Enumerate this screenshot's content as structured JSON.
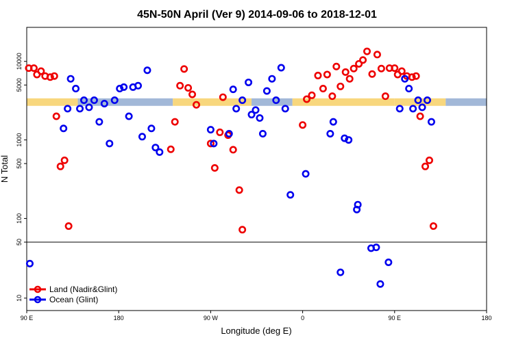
{
  "chart_data": {
    "type": "scatter",
    "title": "45N-50N April (Ver 9)   2014-09-06 to 2018-12-01",
    "xlabel": "Longitude (deg E)",
    "ylabel": "N Total",
    "xlim": [
      90,
      450
    ],
    "x_ticks": [
      {
        "value": 90,
        "label": "90 E"
      },
      {
        "value": 180,
        "label": "180"
      },
      {
        "value": 270,
        "label": "90 W"
      },
      {
        "value": 360,
        "label": "0"
      },
      {
        "value": 450,
        "label": "90 E"
      },
      {
        "value": 540,
        "label": "180"
      }
    ],
    "y_scale": "log",
    "lower_panel": {
      "ylim": [
        7,
        50
      ],
      "ticks": [
        {
          "value": 10,
          "label": "10"
        }
      ]
    },
    "upper_panel": {
      "ylim": [
        50,
        25000
      ],
      "ticks": [
        {
          "value": 50,
          "label": "50"
        },
        {
          "value": 100,
          "label": "100"
        },
        {
          "value": 500,
          "label": "500"
        },
        {
          "value": 1000,
          "label": "1000"
        },
        {
          "value": 5000,
          "label": "5000"
        },
        {
          "value": 10000,
          "label": "10000"
        }
      ]
    },
    "land_strip": {
      "y": 3000,
      "land_color": "#f8d77d",
      "ocean_color": "#a2b8d8",
      "segments": [
        {
          "from": 90,
          "to": 140,
          "kind": "land"
        },
        {
          "from": 140,
          "to": 233,
          "kind": "ocean"
        },
        {
          "from": 233,
          "to": 310,
          "kind": "land"
        },
        {
          "from": 310,
          "to": 350,
          "kind": "ocean"
        },
        {
          "from": 350,
          "to": 450,
          "kind": "land"
        },
        {
          "from": 450,
          "to": 500,
          "kind": "land"
        },
        {
          "from": 500,
          "to": 540,
          "kind": "ocean"
        }
      ]
    },
    "grid": false,
    "legend_position": "bottom-left",
    "series": [
      {
        "name": "Land (Nadir&Glint)",
        "color": "#ee0000",
        "points": [
          [
            92,
            8200
          ],
          [
            97,
            8200
          ],
          [
            100,
            6800
          ],
          [
            104,
            7500
          ],
          [
            108,
            6500
          ],
          [
            113,
            6300
          ],
          [
            117,
            6500
          ],
          [
            119,
            2000
          ],
          [
            123,
            460
          ],
          [
            127,
            550
          ],
          [
            131,
            80
          ],
          [
            231,
            760
          ],
          [
            235,
            1700
          ],
          [
            240,
            4900
          ],
          [
            244,
            8000
          ],
          [
            248,
            4600
          ],
          [
            252,
            3800
          ],
          [
            256,
            2800
          ],
          [
            270,
            900
          ],
          [
            274,
            440
          ],
          [
            279,
            1250
          ],
          [
            282,
            3500
          ],
          [
            287,
            1150
          ],
          [
            292,
            750
          ],
          [
            298,
            230
          ],
          [
            301,
            72
          ],
          [
            360,
            1550
          ],
          [
            364,
            3300
          ],
          [
            369,
            3700
          ],
          [
            375,
            6600
          ],
          [
            380,
            4500
          ],
          [
            384,
            6800
          ],
          [
            389,
            3600
          ],
          [
            393,
            8600
          ],
          [
            397,
            4800
          ],
          [
            402,
            7300
          ],
          [
            406,
            6000
          ],
          [
            410,
            8100
          ],
          [
            415,
            9300
          ],
          [
            419,
            10400
          ],
          [
            423,
            13400
          ],
          [
            428,
            6900
          ],
          [
            433,
            12200
          ],
          [
            437,
            8100
          ],
          [
            441,
            3600
          ],
          [
            445,
            8200
          ],
          [
            450,
            8200
          ],
          [
            453,
            6800
          ],
          [
            457,
            7500
          ],
          [
            462,
            6500
          ],
          [
            467,
            6300
          ],
          [
            471,
            6500
          ],
          [
            475,
            2000
          ],
          [
            480,
            460
          ],
          [
            484,
            550
          ],
          [
            488,
            80
          ]
        ]
      },
      {
        "name": "Ocean (Glint)",
        "color": "#0000ee",
        "points": [
          [
            93,
            27
          ],
          [
            126,
            1400
          ],
          [
            130,
            2500
          ],
          [
            133,
            6000
          ],
          [
            138,
            4500
          ],
          [
            142,
            2500
          ],
          [
            146,
            3200
          ],
          [
            151,
            2600
          ],
          [
            156,
            3200
          ],
          [
            161,
            1700
          ],
          [
            166,
            2900
          ],
          [
            171,
            900
          ],
          [
            176,
            3200
          ],
          [
            181,
            4500
          ],
          [
            185,
            4700
          ],
          [
            190,
            2000
          ],
          [
            194,
            4700
          ],
          [
            199,
            4900
          ],
          [
            203,
            1100
          ],
          [
            208,
            7700
          ],
          [
            212,
            1400
          ],
          [
            216,
            800
          ],
          [
            220,
            700
          ],
          [
            270,
            1350
          ],
          [
            273,
            900
          ],
          [
            288,
            1200
          ],
          [
            292,
            4400
          ],
          [
            295,
            2500
          ],
          [
            301,
            3200
          ],
          [
            307,
            5400
          ],
          [
            310,
            2100
          ],
          [
            314,
            2400
          ],
          [
            318,
            1900
          ],
          [
            321,
            1200
          ],
          [
            325,
            4200
          ],
          [
            330,
            6000
          ],
          [
            334,
            3200
          ],
          [
            339,
            8300
          ],
          [
            343,
            2500
          ],
          [
            348,
            200
          ],
          [
            363,
            370
          ],
          [
            387,
            1200
          ],
          [
            390,
            1700
          ],
          [
            397,
            21
          ],
          [
            401,
            1050
          ],
          [
            405,
            1000
          ],
          [
            413,
            130
          ],
          [
            414,
            150
          ],
          [
            427,
            42
          ],
          [
            432,
            43
          ],
          [
            436,
            15
          ],
          [
            444,
            28
          ],
          [
            455,
            2500
          ],
          [
            460,
            6000
          ],
          [
            464,
            4500
          ],
          [
            468,
            2500
          ],
          [
            473,
            3200
          ],
          [
            477,
            2600
          ],
          [
            482,
            3200
          ],
          [
            486,
            1700
          ]
        ]
      }
    ]
  }
}
